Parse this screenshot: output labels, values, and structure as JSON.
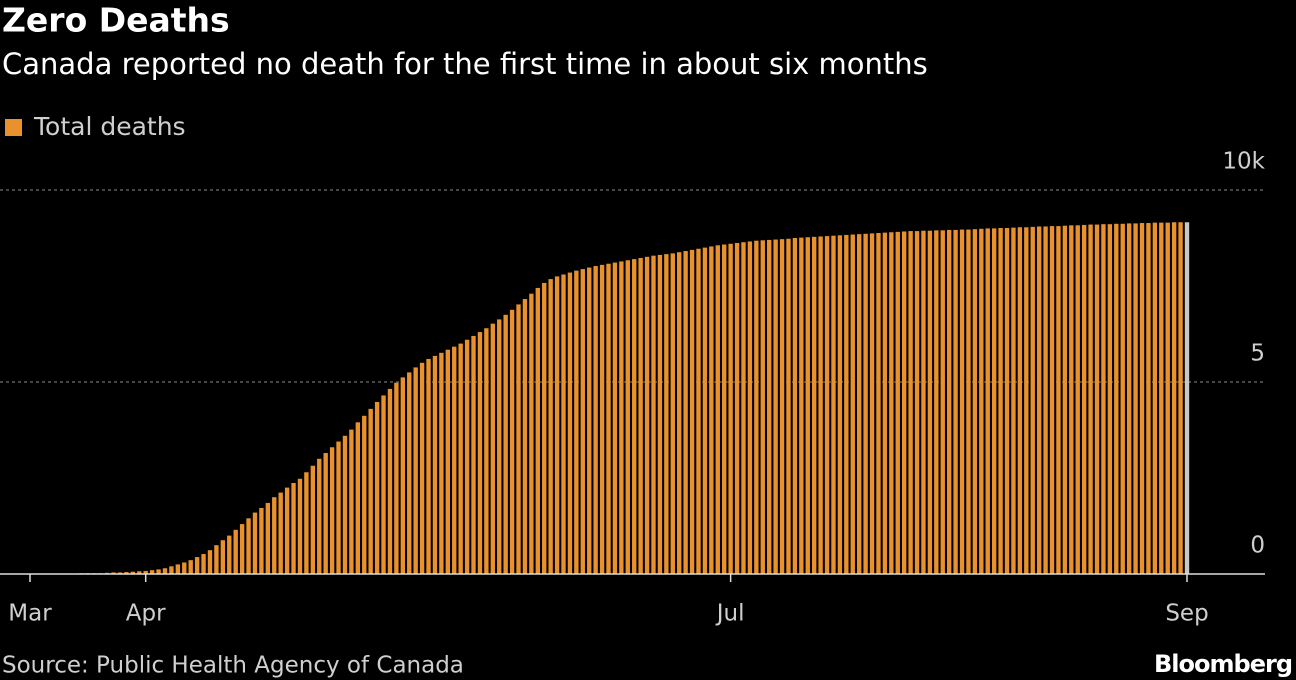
{
  "chart_data": {
    "type": "bar",
    "title": "Zero Deaths",
    "subtitle": "Canada reported no death for the first time in about six months",
    "source": "Source: Public Health Agency of Canada",
    "credit": "Bloomberg",
    "categories": [
      "Mar",
      null,
      null,
      null,
      null,
      null,
      null,
      null,
      null,
      null,
      null,
      null,
      null,
      null,
      null,
      null,
      null,
      null,
      "Apr",
      null,
      null,
      null,
      null,
      null,
      null,
      null,
      null,
      null,
      null,
      null,
      null,
      null,
      null,
      null,
      null,
      null,
      null,
      null,
      null,
      null,
      null,
      null,
      null,
      null,
      null,
      null,
      null,
      null,
      null,
      null,
      null,
      null,
      null,
      null,
      null,
      null,
      null,
      null,
      null,
      null,
      null,
      null,
      null,
      null,
      null,
      null,
      null,
      null,
      null,
      null,
      null,
      null,
      null,
      null,
      null,
      null,
      null,
      null,
      null,
      null,
      null,
      null,
      null,
      null,
      null,
      null,
      null,
      null,
      null,
      null,
      null,
      null,
      null,
      null,
      null,
      null,
      null,
      null,
      null,
      null,
      null,
      null,
      null,
      null,
      null,
      null,
      null,
      null,
      null,
      "Jul",
      null,
      null,
      null,
      null,
      null,
      null,
      null,
      null,
      null,
      null,
      null,
      null,
      null,
      null,
      null,
      null,
      null,
      null,
      null,
      null,
      null,
      null,
      null,
      null,
      null,
      null,
      null,
      null,
      null,
      null,
      null,
      null,
      null,
      null,
      null,
      null,
      null,
      null,
      null,
      null,
      null,
      null,
      null,
      null,
      null,
      null,
      null,
      null,
      null,
      null,
      null,
      null,
      null,
      null,
      null,
      null,
      null,
      null,
      null,
      null,
      null,
      null,
      null,
      null,
      null,
      null,
      null,
      null,
      null,
      null,
      "Sep"
    ],
    "series": [
      {
        "name": "Total deaths",
        "color": "#e8912d",
        "values": [
          0,
          0,
          0.01,
          0.01,
          0.01,
          0.01,
          0.01,
          0.01,
          0.02,
          0.02,
          0.02,
          0.02,
          0.03,
          0.04,
          0.04,
          0.05,
          0.06,
          0.07,
          0.08,
          0.1,
          0.12,
          0.15,
          0.2,
          0.25,
          0.3,
          0.36,
          0.44,
          0.52,
          0.62,
          0.75,
          0.88,
          1.0,
          1.15,
          1.3,
          1.45,
          1.6,
          1.72,
          1.85,
          2.0,
          2.12,
          2.25,
          2.37,
          2.48,
          2.65,
          2.82,
          3.0,
          3.15,
          3.3,
          3.45,
          3.6,
          3.76,
          3.95,
          4.12,
          4.3,
          4.48,
          4.65,
          4.82,
          4.98,
          5.12,
          5.25,
          5.38,
          5.5,
          5.6,
          5.68,
          5.76,
          5.84,
          5.92,
          6.0,
          6.1,
          6.2,
          6.3,
          6.4,
          6.52,
          6.63,
          6.75,
          6.88,
          7.02,
          7.16,
          7.3,
          7.45,
          7.58,
          7.68,
          7.75,
          7.8,
          7.85,
          7.9,
          7.94,
          7.98,
          8.02,
          8.05,
          8.08,
          8.11,
          8.14,
          8.17,
          8.2,
          8.23,
          8.26,
          8.29,
          8.31,
          8.33,
          8.35,
          8.38,
          8.41,
          8.44,
          8.47,
          8.5,
          8.53,
          8.56,
          8.58,
          8.6,
          8.62,
          8.64,
          8.66,
          8.68,
          8.69,
          8.7,
          8.71,
          8.72,
          8.73,
          8.75,
          8.76,
          8.77,
          8.78,
          8.79,
          8.8,
          8.81,
          8.82,
          8.83,
          8.84,
          8.85,
          8.86,
          8.87,
          8.88,
          8.89,
          8.9,
          8.91,
          8.92,
          8.93,
          8.93,
          8.94,
          8.94,
          8.95,
          8.95,
          8.96,
          8.96,
          8.97,
          8.97,
          8.98,
          8.99,
          9.0,
          9.0,
          9.01,
          9.01,
          9.02,
          9.03,
          9.03,
          9.04,
          9.05,
          9.05,
          9.06,
          9.06,
          9.07,
          9.08,
          9.08,
          9.09,
          9.1,
          9.1,
          9.11,
          9.11,
          9.12,
          9.12,
          9.13,
          9.13,
          9.14,
          9.14,
          9.15,
          9.15,
          9.15,
          9.16,
          9.16,
          9.16
        ]
      }
    ],
    "last_bar_color": "#c8c8c8",
    "ylim": [
      0,
      10
    ],
    "yticks": [
      0,
      5,
      {
        "value": 10,
        "label": "10k"
      }
    ],
    "grid": true
  }
}
